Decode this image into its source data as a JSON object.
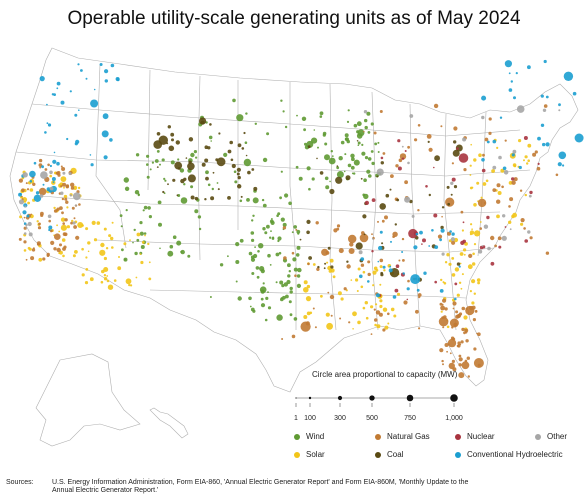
{
  "title": "Operable utility-scale generating units as of May 2024",
  "scale": {
    "title": "Circle area proportional to capacity (MW)",
    "ticks": [
      {
        "label": "1",
        "value": 1
      },
      {
        "label": "100",
        "value": 100
      },
      {
        "label": "300",
        "value": 300
      },
      {
        "label": "500",
        "value": 500
      },
      {
        "label": "750",
        "value": 750
      },
      {
        "label": "1,000",
        "value": 1000
      }
    ]
  },
  "legend": [
    {
      "label": "Wind",
      "color": "#5f9a33"
    },
    {
      "label": "Solar",
      "color": "#f2c518"
    },
    {
      "label": "Natural Gas",
      "color": "#c17a33"
    },
    {
      "label": "Coal",
      "color": "#5a4a12"
    },
    {
      "label": "Nuclear",
      "color": "#a8343f"
    },
    {
      "label": "Conventional Hydroelectric",
      "color": "#1b9ed0"
    },
    {
      "label": "Other",
      "color": "#a6a6a6"
    }
  ],
  "sources": {
    "label": "Sources:",
    "text": "U.S. Energy Information Administration, Form EIA-860, 'Annual Electric Generator Report' and Form EIA-860M, 'Monthly Update to the Annual Electric Generator Report.'"
  }
}
